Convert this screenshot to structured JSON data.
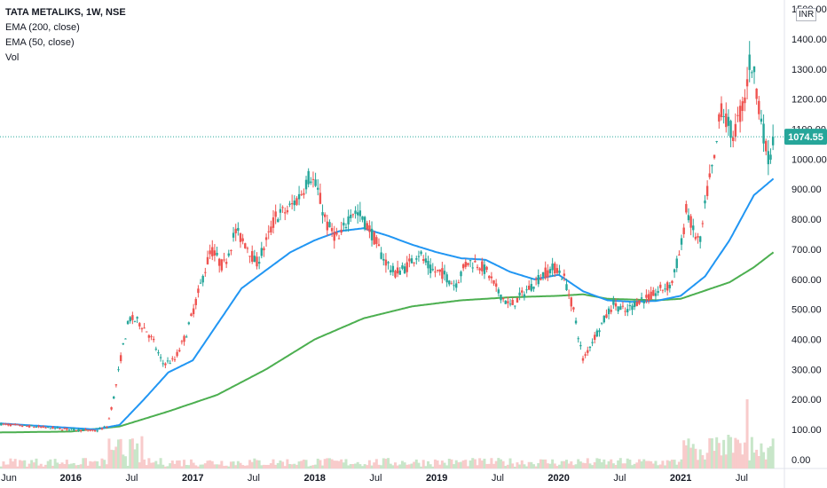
{
  "legend": {
    "title": "TATA METALIKS, 1W, NSE",
    "ema200": "EMA (200, close)",
    "ema50": "EMA (50, close)",
    "vol": "Vol"
  },
  "currency": "INR",
  "last_price_label": "1074.55",
  "colors": {
    "up": "#26a69a",
    "down": "#ef5350",
    "ema50": "#2196f3",
    "ema200": "#4caf50",
    "vol_up": "#c8e6c9",
    "vol_down": "#f8cbcb",
    "price_line": "#26a69a"
  },
  "chart_data": {
    "type": "candlestick",
    "y_axis": {
      "ticks": [
        "0.00",
        "100.00",
        "200.00",
        "300.00",
        "400.00",
        "500.00",
        "600.00",
        "700.00",
        "800.00",
        "900.00",
        "1000.00",
        "1100.00",
        "1200.00",
        "1300.00",
        "1400.00",
        "1500.00"
      ],
      "range": [
        -30,
        1530
      ]
    },
    "x_axis": {
      "ticks": [
        {
          "label": "Jun",
          "t": 2015.42,
          "bold": false
        },
        {
          "label": "2016",
          "t": 2016.0,
          "bold": true
        },
        {
          "label": "Jul",
          "t": 2016.5,
          "bold": false
        },
        {
          "label": "2017",
          "t": 2017.0,
          "bold": true
        },
        {
          "label": "Jul",
          "t": 2017.5,
          "bold": false
        },
        {
          "label": "2018",
          "t": 2018.0,
          "bold": true
        },
        {
          "label": "Jul",
          "t": 2018.5,
          "bold": false
        },
        {
          "label": "2019",
          "t": 2019.0,
          "bold": true
        },
        {
          "label": "Jul",
          "t": 2019.5,
          "bold": false
        },
        {
          "label": "2020",
          "t": 2020.0,
          "bold": true
        },
        {
          "label": "Jul",
          "t": 2020.5,
          "bold": false
        },
        {
          "label": "2021",
          "t": 2021.0,
          "bold": true
        },
        {
          "label": "Jul",
          "t": 2021.5,
          "bold": false
        }
      ],
      "range": [
        2015.42,
        2021.85
      ]
    },
    "last_price": 1074.55,
    "price_anchors": [
      [
        2015.42,
        118
      ],
      [
        2015.9,
        103
      ],
      [
        2016.2,
        95
      ],
      [
        2016.3,
        110
      ],
      [
        2016.36,
        220
      ],
      [
        2016.42,
        360
      ],
      [
        2016.48,
        470
      ],
      [
        2016.55,
        460
      ],
      [
        2016.62,
        430
      ],
      [
        2016.68,
        390
      ],
      [
        2016.75,
        320
      ],
      [
        2016.85,
        330
      ],
      [
        2016.95,
        420
      ],
      [
        2017.05,
        560
      ],
      [
        2017.15,
        700
      ],
      [
        2017.25,
        640
      ],
      [
        2017.35,
        760
      ],
      [
        2017.45,
        710
      ],
      [
        2017.52,
        650
      ],
      [
        2017.6,
        720
      ],
      [
        2017.68,
        810
      ],
      [
        2017.78,
        830
      ],
      [
        2017.88,
        880
      ],
      [
        2017.96,
        950
      ],
      [
        2018.02,
        900
      ],
      [
        2018.1,
        780
      ],
      [
        2018.2,
        730
      ],
      [
        2018.3,
        830
      ],
      [
        2018.38,
        810
      ],
      [
        2018.46,
        760
      ],
      [
        2018.55,
        680
      ],
      [
        2018.65,
        620
      ],
      [
        2018.75,
        640
      ],
      [
        2018.85,
        690
      ],
      [
        2018.95,
        630
      ],
      [
        2019.05,
        620
      ],
      [
        2019.15,
        580
      ],
      [
        2019.25,
        660
      ],
      [
        2019.35,
        650
      ],
      [
        2019.42,
        620
      ],
      [
        2019.5,
        560
      ],
      [
        2019.6,
        510
      ],
      [
        2019.68,
        540
      ],
      [
        2019.78,
        580
      ],
      [
        2019.88,
        620
      ],
      [
        2019.98,
        640
      ],
      [
        2020.05,
        600
      ],
      [
        2020.12,
        500
      ],
      [
        2020.2,
        330
      ],
      [
        2020.27,
        390
      ],
      [
        2020.35,
        450
      ],
      [
        2020.45,
        520
      ],
      [
        2020.55,
        490
      ],
      [
        2020.65,
        530
      ],
      [
        2020.75,
        540
      ],
      [
        2020.85,
        570
      ],
      [
        2020.92,
        580
      ],
      [
        2021.0,
        700
      ],
      [
        2021.05,
        840
      ],
      [
        2021.1,
        760
      ],
      [
        2021.16,
        720
      ],
      [
        2021.22,
        900
      ],
      [
        2021.28,
        1000
      ],
      [
        2021.33,
        1180
      ],
      [
        2021.38,
        1120
      ],
      [
        2021.43,
        1080
      ],
      [
        2021.48,
        1140
      ],
      [
        2021.53,
        1210
      ],
      [
        2021.57,
        1340
      ],
      [
        2021.62,
        1240
      ],
      [
        2021.66,
        1140
      ],
      [
        2021.7,
        1030
      ],
      [
        2021.73,
        1000
      ],
      [
        2021.76,
        1074.55
      ]
    ],
    "ema50_anchors": [
      [
        2015.42,
        120
      ],
      [
        2016.2,
        100
      ],
      [
        2016.4,
        115
      ],
      [
        2016.6,
        200
      ],
      [
        2016.8,
        290
      ],
      [
        2017.0,
        330
      ],
      [
        2017.2,
        450
      ],
      [
        2017.4,
        570
      ],
      [
        2017.6,
        630
      ],
      [
        2017.8,
        690
      ],
      [
        2018.0,
        730
      ],
      [
        2018.2,
        760
      ],
      [
        2018.4,
        770
      ],
      [
        2018.6,
        745
      ],
      [
        2018.8,
        715
      ],
      [
        2019.0,
        690
      ],
      [
        2019.2,
        670
      ],
      [
        2019.4,
        665
      ],
      [
        2019.6,
        625
      ],
      [
        2019.8,
        600
      ],
      [
        2020.0,
        615
      ],
      [
        2020.2,
        560
      ],
      [
        2020.4,
        530
      ],
      [
        2020.6,
        525
      ],
      [
        2020.8,
        528
      ],
      [
        2021.0,
        545
      ],
      [
        2021.2,
        610
      ],
      [
        2021.4,
        730
      ],
      [
        2021.6,
        880
      ],
      [
        2021.76,
        935
      ]
    ],
    "ema200_anchors": [
      [
        2015.42,
        90
      ],
      [
        2016.0,
        93
      ],
      [
        2016.4,
        110
      ],
      [
        2016.8,
        160
      ],
      [
        2017.2,
        215
      ],
      [
        2017.6,
        300
      ],
      [
        2018.0,
        400
      ],
      [
        2018.4,
        470
      ],
      [
        2018.8,
        510
      ],
      [
        2019.2,
        530
      ],
      [
        2019.6,
        540
      ],
      [
        2020.0,
        545
      ],
      [
        2020.2,
        550
      ],
      [
        2020.4,
        535
      ],
      [
        2020.8,
        530
      ],
      [
        2021.0,
        535
      ],
      [
        2021.4,
        590
      ],
      [
        2021.6,
        640
      ],
      [
        2021.76,
        690
      ]
    ]
  }
}
